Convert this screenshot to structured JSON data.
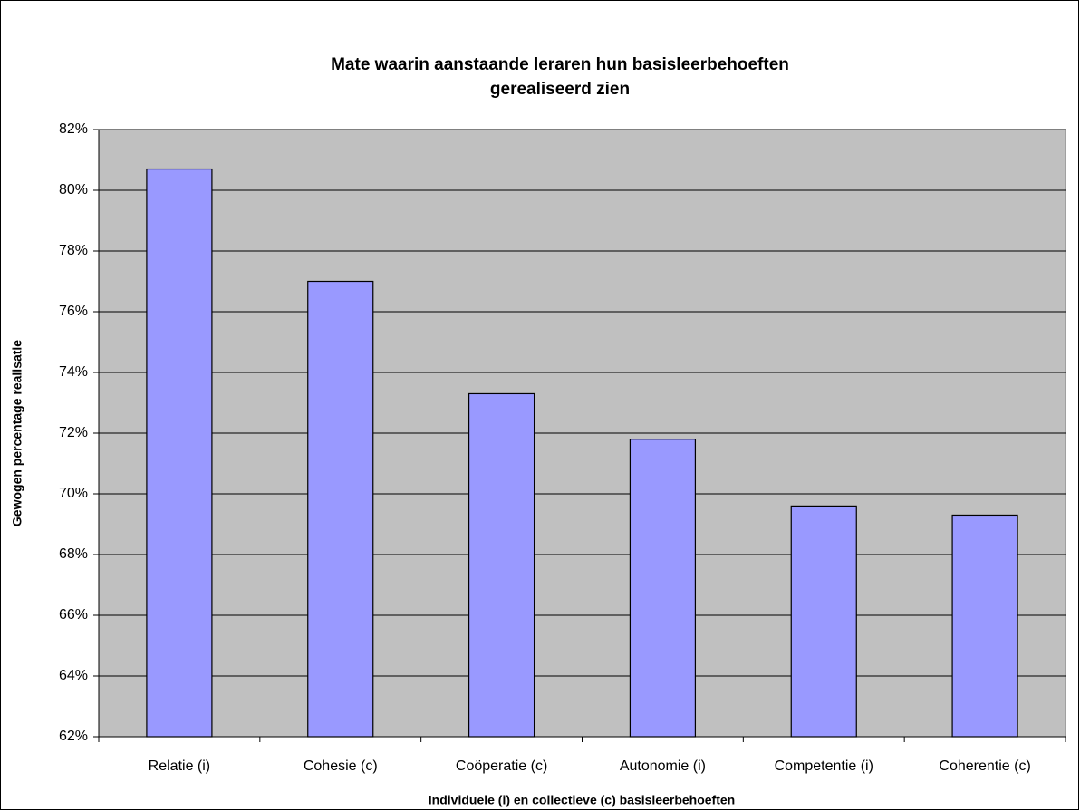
{
  "chart_data": {
    "type": "bar",
    "title": [
      "Mate waarin aanstaande leraren hun basisleerbehoeften",
      "gerealiseerd zien"
    ],
    "xlabel": "Individuele (i) en collectieve (c) basisleerbehoeften",
    "ylabel": "Gewogen percentage realisatie",
    "categories": [
      "Relatie (i)",
      "Cohesie (c)",
      "Coöperatie (c)",
      "Autonomie (i)",
      "Competentie (i)",
      "Coherentie (c)"
    ],
    "values": [
      80.7,
      77.0,
      73.3,
      71.8,
      69.6,
      69.3
    ],
    "color": "#9999ff",
    "ylim": [
      62,
      82
    ],
    "yticks": [
      {
        "value": 62,
        "label": "62%"
      },
      {
        "value": 64,
        "label": "64%"
      },
      {
        "value": 66,
        "label": "66%"
      },
      {
        "value": 68,
        "label": "68%"
      },
      {
        "value": 70,
        "label": "70%"
      },
      {
        "value": 72,
        "label": "72%"
      },
      {
        "value": 74,
        "label": "74%"
      },
      {
        "value": 76,
        "label": "76%"
      },
      {
        "value": 78,
        "label": "78%"
      },
      {
        "value": 80,
        "label": "80%"
      },
      {
        "value": 82,
        "label": "82%"
      }
    ],
    "grid": true
  }
}
